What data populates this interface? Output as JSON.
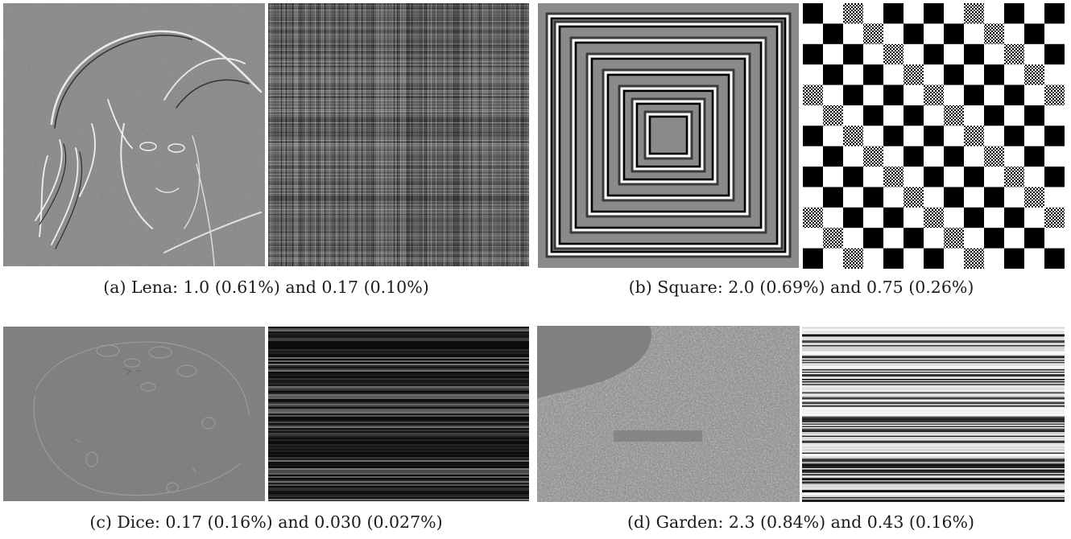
{
  "figure": {
    "panels": [
      {
        "id": "a",
        "caption": "(a) Lena: 1.0 (0.61%) and 0.17 (0.10%)"
      },
      {
        "id": "b",
        "caption": "(b) Square: 2.0 (0.69%) and 0.75 (0.26%)"
      },
      {
        "id": "c",
        "caption": "(c) Dice: 0.17 (0.16%) and 0.030 (0.027%)"
      },
      {
        "id": "d",
        "caption": "(d) Garden: 2.3 (0.84%) and 0.43 (0.16%)"
      }
    ]
  },
  "colors": {
    "residual_gray": "#808080",
    "edge_light": "#e6e6e6",
    "edge_dark": "#2a2a2a",
    "black": "#000000",
    "white": "#ffffff"
  }
}
